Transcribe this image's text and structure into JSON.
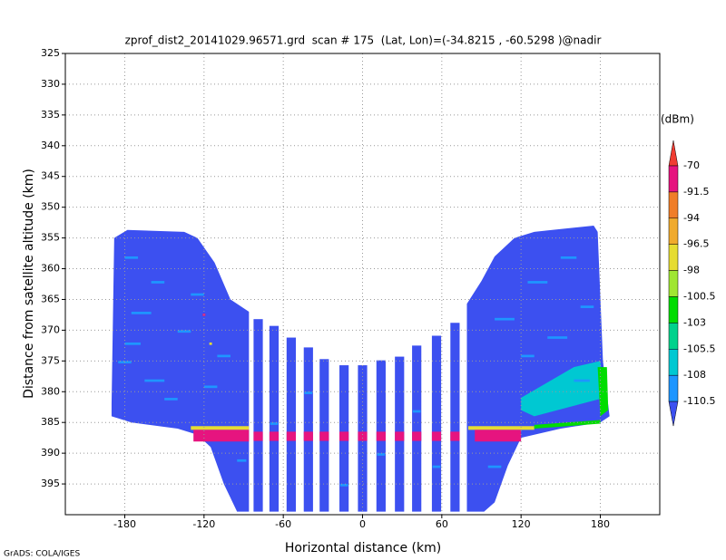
{
  "chart_data": {
    "type": "raster",
    "title": "zprof_dist2_20141029.96571.grd  scan # 175  (Lat, Lon)=(-34.8215 , -60.5298 )@nadir",
    "x_label": "Horizontal distance (km)",
    "y_label": "Distance from satellite altitude (km)",
    "credit": "GrADS: COLA/IGES",
    "xlim": [
      -225,
      225
    ],
    "ylim": [
      325,
      400
    ],
    "y_reversed": true,
    "xticks": [
      -180,
      -120,
      -60,
      0,
      60,
      120,
      180
    ],
    "yticks": [
      325,
      330,
      335,
      340,
      345,
      350,
      355,
      360,
      365,
      370,
      375,
      380,
      385,
      390,
      395
    ],
    "grid": true,
    "colorbar": {
      "unit": "(dBm)",
      "levels": [
        -70,
        -91.5,
        -94,
        -96.5,
        -98,
        -100.5,
        -103,
        -105.5,
        -108,
        -110.5
      ],
      "colors": [
        "#f03c32",
        "#e6147f",
        "#f07d28",
        "#f0aa2d",
        "#e6dc32",
        "#a0e632",
        "#00dc00",
        "#00d28c",
        "#00c8d2",
        "#1e96ff",
        "#3c50f0"
      ]
    },
    "regions": [
      {
        "value": -112,
        "points": [
          [
            -190,
            382
          ],
          [
            -188,
            355
          ],
          [
            -178,
            353.7
          ],
          [
            -135,
            354
          ],
          [
            -125,
            355
          ],
          [
            -112,
            359
          ],
          [
            -100,
            365
          ],
          [
            -86,
            367
          ],
          [
            -86,
            399.5
          ],
          [
            -95,
            399.5
          ],
          [
            -105,
            395
          ],
          [
            -115,
            389
          ],
          [
            -125,
            387
          ],
          [
            -140,
            386
          ],
          [
            -175,
            385
          ],
          [
            -190,
            384
          ]
        ]
      },
      {
        "value": -112,
        "points": [
          [
            79,
            365.7
          ],
          [
            90,
            362
          ],
          [
            100,
            358
          ],
          [
            115,
            355
          ],
          [
            130,
            354
          ],
          [
            175,
            353
          ],
          [
            178,
            354
          ],
          [
            182,
            375
          ],
          [
            187,
            384
          ],
          [
            180,
            385
          ],
          [
            150,
            386
          ],
          [
            120,
            387.5
          ],
          [
            110,
            392
          ],
          [
            100,
            398
          ],
          [
            92,
            399.5
          ],
          [
            79,
            399.5
          ]
        ]
      },
      {
        "value": -112,
        "x": [
          -82.5,
          -75.5
        ],
        "y": [
          368.2,
          399.5
        ]
      },
      {
        "value": -112,
        "x": [
          -70.5,
          -63.5
        ],
        "y": [
          369.3,
          399.5
        ]
      },
      {
        "value": -112,
        "x": [
          -57.5,
          -50.5
        ],
        "y": [
          371.2,
          399.5
        ]
      },
      {
        "value": -112,
        "x": [
          -44.5,
          -37.5
        ],
        "y": [
          372.8,
          399.5
        ]
      },
      {
        "value": -112,
        "x": [
          -32.5,
          -25.5
        ],
        "y": [
          374.7,
          399.5
        ]
      },
      {
        "value": -112,
        "x": [
          -17.5,
          -10.5
        ],
        "y": [
          375.7,
          399.5
        ]
      },
      {
        "value": -112,
        "x": [
          -3.5,
          3.5
        ],
        "y": [
          375.7,
          399.5
        ]
      },
      {
        "value": -112,
        "x": [
          10.5,
          17.5
        ],
        "y": [
          374.9,
          399.5
        ]
      },
      {
        "value": -112,
        "x": [
          24.5,
          31.5
        ],
        "y": [
          374.3,
          399.5
        ]
      },
      {
        "value": -112,
        "x": [
          37.5,
          44.5
        ],
        "y": [
          372.5,
          399.5
        ]
      },
      {
        "value": -112,
        "x": [
          52.5,
          59.5
        ],
        "y": [
          370.9,
          399.5
        ]
      },
      {
        "value": -112,
        "x": [
          66.5,
          73.5
        ],
        "y": [
          368.8,
          399.5
        ]
      },
      {
        "value": -107,
        "points": [
          [
            120,
            381
          ],
          [
            160,
            376
          ],
          [
            180,
            375
          ],
          [
            183,
            381
          ],
          [
            165,
            382
          ],
          [
            130,
            384
          ],
          [
            120,
            383
          ]
        ]
      },
      {
        "value": -102,
        "points": [
          [
            178,
            376
          ],
          [
            185,
            376
          ],
          [
            186,
            383
          ],
          [
            180,
            384
          ]
        ]
      },
      {
        "value": -109,
        "x": [
          -180,
          -170
        ],
        "y": [
          358,
          358.4
        ]
      },
      {
        "value": -109,
        "x": [
          -160,
          -150
        ],
        "y": [
          362,
          362.4
        ]
      },
      {
        "value": -109,
        "x": [
          -175,
          -160
        ],
        "y": [
          367,
          367.4
        ]
      },
      {
        "value": -109,
        "x": [
          -140,
          -130
        ],
        "y": [
          370,
          370.4
        ]
      },
      {
        "value": -109,
        "x": [
          -185,
          -175
        ],
        "y": [
          375,
          375.4
        ]
      },
      {
        "value": -109,
        "x": [
          -165,
          -150
        ],
        "y": [
          378,
          378.4
        ]
      },
      {
        "value": -109,
        "x": [
          -130,
          -120
        ],
        "y": [
          364,
          364.4
        ]
      },
      {
        "value": -109,
        "x": [
          -150,
          -140
        ],
        "y": [
          381,
          381.4
        ]
      },
      {
        "value": -109,
        "x": [
          -110,
          -100
        ],
        "y": [
          374,
          374.4
        ]
      },
      {
        "value": -109,
        "x": [
          -120,
          -110
        ],
        "y": [
          379,
          379.4
        ]
      },
      {
        "value": -109,
        "x": [
          -180,
          -168
        ],
        "y": [
          372,
          372.4
        ]
      },
      {
        "value": -109,
        "x": [
          150,
          162
        ],
        "y": [
          358,
          358.4
        ]
      },
      {
        "value": -109,
        "x": [
          125,
          140
        ],
        "y": [
          362,
          362.4
        ]
      },
      {
        "value": -109,
        "x": [
          165,
          175
        ],
        "y": [
          366,
          366.4
        ]
      },
      {
        "value": -109,
        "x": [
          100,
          115
        ],
        "y": [
          368,
          368.4
        ]
      },
      {
        "value": -109,
        "x": [
          140,
          155
        ],
        "y": [
          371,
          371.4
        ]
      },
      {
        "value": -109,
        "x": [
          120,
          130
        ],
        "y": [
          374,
          374.4
        ]
      },
      {
        "value": -109,
        "x": [
          160,
          172
        ],
        "y": [
          378,
          378.4
        ]
      },
      {
        "value": -109,
        "x": [
          -70,
          -64
        ],
        "y": [
          385,
          385.4
        ]
      },
      {
        "value": -109,
        "x": [
          -44,
          -38
        ],
        "y": [
          380,
          380.4
        ]
      },
      {
        "value": -109,
        "x": [
          11,
          17
        ],
        "y": [
          390,
          390.4
        ]
      },
      {
        "value": -109,
        "x": [
          38,
          44
        ],
        "y": [
          383,
          383.4
        ]
      },
      {
        "value": -109,
        "x": [
          53,
          59
        ],
        "y": [
          392,
          392.4
        ]
      },
      {
        "value": -109,
        "x": [
          -17,
          -11
        ],
        "y": [
          395,
          395.4
        ]
      },
      {
        "value": -109,
        "x": [
          -95,
          -88
        ],
        "y": [
          391,
          391.4
        ]
      },
      {
        "value": -109,
        "x": [
          95,
          105
        ],
        "y": [
          392,
          392.4
        ]
      },
      {
        "value": -97,
        "x": [
          -130,
          -86
        ],
        "y": [
          385.6,
          386.2
        ]
      },
      {
        "value": -97,
        "x": [
          80,
          130
        ],
        "y": [
          385.6,
          386.2
        ]
      },
      {
        "value": -101,
        "points": [
          [
            130,
            385.4
          ],
          [
            180,
            384.6
          ],
          [
            180,
            385.2
          ],
          [
            130,
            386
          ]
        ]
      },
      {
        "value": -80,
        "x": [
          -128,
          -86
        ],
        "y": [
          386.2,
          388.1
        ]
      },
      {
        "value": -80,
        "x": [
          85,
          120
        ],
        "y": [
          386.2,
          388.1
        ]
      },
      {
        "value": -80,
        "x": [
          -82.5,
          -75.5
        ],
        "y": [
          386.5,
          388
        ]
      },
      {
        "value": -80,
        "x": [
          -70.5,
          -63.5
        ],
        "y": [
          386.5,
          388
        ]
      },
      {
        "value": -80,
        "x": [
          -57.5,
          -50.5
        ],
        "y": [
          386.5,
          388
        ]
      },
      {
        "value": -80,
        "x": [
          -44.5,
          -37.5
        ],
        "y": [
          386.5,
          388
        ]
      },
      {
        "value": -80,
        "x": [
          -32.5,
          -25.5
        ],
        "y": [
          386.5,
          388
        ]
      },
      {
        "value": -80,
        "x": [
          -17.5,
          -10.5
        ],
        "y": [
          386.5,
          388
        ]
      },
      {
        "value": -80,
        "x": [
          -3.5,
          3.5
        ],
        "y": [
          386.5,
          388
        ]
      },
      {
        "value": -80,
        "x": [
          10.5,
          17.5
        ],
        "y": [
          386.5,
          388
        ]
      },
      {
        "value": -80,
        "x": [
          24.5,
          31.5
        ],
        "y": [
          386.5,
          388
        ]
      },
      {
        "value": -80,
        "x": [
          37.5,
          44.5
        ],
        "y": [
          386.5,
          388
        ]
      },
      {
        "value": -80,
        "x": [
          52.5,
          59.5
        ],
        "y": [
          386.5,
          388
        ]
      },
      {
        "value": -80,
        "x": [
          66.5,
          73.5
        ],
        "y": [
          386.5,
          388
        ]
      },
      {
        "value": -85,
        "x": [
          -121,
          -119
        ],
        "y": [
          367.3,
          367.7
        ]
      },
      {
        "value": -97,
        "x": [
          -116,
          -114
        ],
        "y": [
          372,
          372.4
        ]
      }
    ]
  }
}
